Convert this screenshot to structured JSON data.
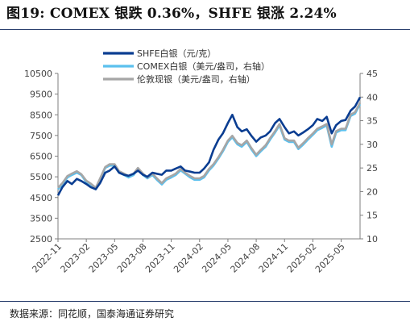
{
  "header": {
    "title": "图19:  COMEX 银跌 0.36%，SHFE 银涨 2.24%"
  },
  "footer": {
    "source": "数据来源：同花顺，国泰海通证券研究"
  },
  "chart_data": {
    "type": "line",
    "legend_placement": "top-center",
    "grid": false,
    "y_left": {
      "min": 2500,
      "max": 10500,
      "ticks": [
        2500,
        3500,
        4500,
        5500,
        6500,
        7500,
        8500,
        9500,
        10500
      ]
    },
    "y_right": {
      "min": 10,
      "max": 45,
      "ticks": [
        10,
        15,
        20,
        25,
        30,
        35,
        40,
        45
      ]
    },
    "x_labels": [
      "2022-11",
      "2023-02",
      "2023-05",
      "2023-08",
      "2023-11",
      "2024-02",
      "2024-05",
      "2024-08",
      "2024-11",
      "2025-02",
      "2025-05"
    ],
    "x_range": [
      "2022-11",
      "2025-07"
    ],
    "series": [
      {
        "name": "SHFE白银（元/克）",
        "axis": "left",
        "color": "#0a3d91",
        "points": [
          [
            "2022-11",
            4600
          ],
          [
            "2022-11-15",
            5000
          ],
          [
            "2022-12",
            5300
          ],
          [
            "2022-12-15",
            5150
          ],
          [
            "2023-01",
            5400
          ],
          [
            "2023-01-15",
            5300
          ],
          [
            "2023-02",
            5150
          ],
          [
            "2023-02-15",
            5000
          ],
          [
            "2023-03",
            4900
          ],
          [
            "2023-03-15",
            5200
          ],
          [
            "2023-04",
            5700
          ],
          [
            "2023-04-15",
            5800
          ],
          [
            "2023-05",
            6000
          ],
          [
            "2023-05-15",
            5700
          ],
          [
            "2023-06",
            5600
          ],
          [
            "2023-06-15",
            5550
          ],
          [
            "2023-07",
            5650
          ],
          [
            "2023-07-15",
            5800
          ],
          [
            "2023-08",
            5600
          ],
          [
            "2023-08-15",
            5500
          ],
          [
            "2023-09",
            5700
          ],
          [
            "2023-09-15",
            5650
          ],
          [
            "2023-10",
            5600
          ],
          [
            "2023-10-15",
            5800
          ],
          [
            "2023-11",
            5800
          ],
          [
            "2023-11-15",
            5900
          ],
          [
            "2023-12",
            6000
          ],
          [
            "2023-12-15",
            5800
          ],
          [
            "2024-01",
            5750
          ],
          [
            "2024-01-15",
            5700
          ],
          [
            "2024-02",
            5700
          ],
          [
            "2024-02-15",
            5900
          ],
          [
            "2024-03",
            6200
          ],
          [
            "2024-03-15",
            6800
          ],
          [
            "2024-04",
            7300
          ],
          [
            "2024-04-15",
            7600
          ],
          [
            "2024-05",
            8100
          ],
          [
            "2024-05-15",
            8500
          ],
          [
            "2024-06",
            7900
          ],
          [
            "2024-06-15",
            7700
          ],
          [
            "2024-07",
            7800
          ],
          [
            "2024-07-15",
            7500
          ],
          [
            "2024-08",
            7200
          ],
          [
            "2024-08-15",
            7400
          ],
          [
            "2024-09",
            7500
          ],
          [
            "2024-09-15",
            7700
          ],
          [
            "2024-10",
            8100
          ],
          [
            "2024-10-15",
            8300
          ],
          [
            "2024-11",
            7900
          ],
          [
            "2024-11-15",
            7600
          ],
          [
            "2024-12",
            7700
          ],
          [
            "2024-12-15",
            7500
          ],
          [
            "2025-01",
            7650
          ],
          [
            "2025-01-15",
            7800
          ],
          [
            "2025-02",
            8000
          ],
          [
            "2025-02-15",
            8300
          ],
          [
            "2025-03",
            8200
          ],
          [
            "2025-03-15",
            8400
          ],
          [
            "2025-04",
            7600
          ],
          [
            "2025-04-15",
            8000
          ],
          [
            "2025-05",
            8200
          ],
          [
            "2025-05-15",
            8250
          ],
          [
            "2025-06",
            8700
          ],
          [
            "2025-06-15",
            8900
          ],
          [
            "2025-07",
            9350
          ]
        ]
      },
      {
        "name": "COMEX白银（美元/盎司，右轴）",
        "axis": "right",
        "color": "#5bc0ee",
        "points": [
          [
            "2022-11",
            20.5
          ],
          [
            "2022-11-15",
            21.5
          ],
          [
            "2022-12",
            23.0
          ],
          [
            "2022-12-15",
            23.5
          ],
          [
            "2023-01",
            24.0
          ],
          [
            "2023-01-15",
            23.5
          ],
          [
            "2023-02",
            22.0
          ],
          [
            "2023-02-15",
            21.5
          ],
          [
            "2023-03",
            20.5
          ],
          [
            "2023-03-15",
            22.5
          ],
          [
            "2023-04",
            25.0
          ],
          [
            "2023-04-15",
            25.5
          ],
          [
            "2023-05",
            25.5
          ],
          [
            "2023-05-15",
            24.0
          ],
          [
            "2023-06",
            23.5
          ],
          [
            "2023-06-15",
            23.0
          ],
          [
            "2023-07",
            23.5
          ],
          [
            "2023-07-15",
            24.8
          ],
          [
            "2023-08",
            23.5
          ],
          [
            "2023-08-15",
            22.8
          ],
          [
            "2023-09",
            23.5
          ],
          [
            "2023-09-15",
            22.5
          ],
          [
            "2023-10",
            21.5
          ],
          [
            "2023-10-15",
            22.5
          ],
          [
            "2023-11",
            23.0
          ],
          [
            "2023-11-15",
            23.5
          ],
          [
            "2023-12",
            24.5
          ],
          [
            "2023-12-15",
            23.8
          ],
          [
            "2024-01",
            23.0
          ],
          [
            "2024-01-15",
            22.5
          ],
          [
            "2024-02",
            22.5
          ],
          [
            "2024-02-15",
            23.0
          ],
          [
            "2024-03",
            24.5
          ],
          [
            "2024-03-15",
            25.5
          ],
          [
            "2024-04",
            27.0
          ],
          [
            "2024-04-15",
            28.5
          ],
          [
            "2024-05",
            30.5
          ],
          [
            "2024-05-15",
            31.5
          ],
          [
            "2024-06",
            30.0
          ],
          [
            "2024-06-15",
            29.5
          ],
          [
            "2024-07",
            30.5
          ],
          [
            "2024-07-15",
            29.0
          ],
          [
            "2024-08",
            27.5
          ],
          [
            "2024-08-15",
            28.5
          ],
          [
            "2024-09",
            29.5
          ],
          [
            "2024-09-15",
            31.0
          ],
          [
            "2024-10",
            32.5
          ],
          [
            "2024-10-15",
            34.0
          ],
          [
            "2024-11",
            31.0
          ],
          [
            "2024-11-15",
            30.5
          ],
          [
            "2024-12",
            30.5
          ],
          [
            "2024-12-15",
            29.0
          ],
          [
            "2025-01",
            30.0
          ],
          [
            "2025-01-15",
            31.0
          ],
          [
            "2025-02",
            32.0
          ],
          [
            "2025-02-15",
            33.0
          ],
          [
            "2025-03",
            33.5
          ],
          [
            "2025-03-15",
            34.0
          ],
          [
            "2025-04",
            29.5
          ],
          [
            "2025-04-15",
            32.5
          ],
          [
            "2025-05",
            33.0
          ],
          [
            "2025-05-15",
            33.0
          ],
          [
            "2025-06",
            36.0
          ],
          [
            "2025-06-15",
            36.5
          ],
          [
            "2025-07",
            38.5
          ]
        ]
      },
      {
        "name": "伦敦现银（美元/盎司，右轴）",
        "axis": "right",
        "color": "#a6a6a6",
        "points": [
          [
            "2022-11",
            20.8
          ],
          [
            "2022-11-15",
            21.8
          ],
          [
            "2022-12",
            23.3
          ],
          [
            "2022-12-15",
            23.8
          ],
          [
            "2023-01",
            24.3
          ],
          [
            "2023-01-15",
            23.7
          ],
          [
            "2023-02",
            22.3
          ],
          [
            "2023-02-15",
            21.7
          ],
          [
            "2023-03",
            20.8
          ],
          [
            "2023-03-15",
            22.8
          ],
          [
            "2023-04",
            25.2
          ],
          [
            "2023-04-15",
            25.8
          ],
          [
            "2023-05",
            25.8
          ],
          [
            "2023-05-15",
            24.3
          ],
          [
            "2023-06",
            23.8
          ],
          [
            "2023-06-15",
            23.3
          ],
          [
            "2023-07",
            23.8
          ],
          [
            "2023-07-15",
            25.0
          ],
          [
            "2023-08",
            23.8
          ],
          [
            "2023-08-15",
            23.0
          ],
          [
            "2023-09",
            23.8
          ],
          [
            "2023-09-15",
            22.8
          ],
          [
            "2023-10",
            21.8
          ],
          [
            "2023-10-15",
            22.8
          ],
          [
            "2023-11",
            23.3
          ],
          [
            "2023-11-15",
            23.8
          ],
          [
            "2023-12",
            24.8
          ],
          [
            "2023-12-15",
            24.0
          ],
          [
            "2024-01",
            23.3
          ],
          [
            "2024-01-15",
            22.8
          ],
          [
            "2024-02",
            22.8
          ],
          [
            "2024-02-15",
            23.3
          ],
          [
            "2024-03",
            24.8
          ],
          [
            "2024-03-15",
            25.8
          ],
          [
            "2024-04",
            27.3
          ],
          [
            "2024-04-15",
            28.8
          ],
          [
            "2024-05",
            30.8
          ],
          [
            "2024-05-15",
            31.8
          ],
          [
            "2024-06",
            30.3
          ],
          [
            "2024-06-15",
            29.8
          ],
          [
            "2024-07",
            30.8
          ],
          [
            "2024-07-15",
            29.3
          ],
          [
            "2024-08",
            27.8
          ],
          [
            "2024-08-15",
            28.8
          ],
          [
            "2024-09",
            29.8
          ],
          [
            "2024-09-15",
            31.3
          ],
          [
            "2024-10",
            32.8
          ],
          [
            "2024-10-15",
            34.3
          ],
          [
            "2024-11",
            31.3
          ],
          [
            "2024-11-15",
            30.8
          ],
          [
            "2024-12",
            30.8
          ],
          [
            "2024-12-15",
            29.3
          ],
          [
            "2025-01",
            30.3
          ],
          [
            "2025-01-15",
            31.3
          ],
          [
            "2025-02",
            32.3
          ],
          [
            "2025-02-15",
            33.3
          ],
          [
            "2025-03",
            33.8
          ],
          [
            "2025-03-15",
            34.3
          ],
          [
            "2025-04",
            30.0
          ],
          [
            "2025-04-15",
            32.8
          ],
          [
            "2025-05",
            33.3
          ],
          [
            "2025-05-15",
            33.3
          ],
          [
            "2025-06",
            36.3
          ],
          [
            "2025-06-15",
            36.8
          ],
          [
            "2025-07",
            38.8
          ]
        ]
      }
    ]
  }
}
